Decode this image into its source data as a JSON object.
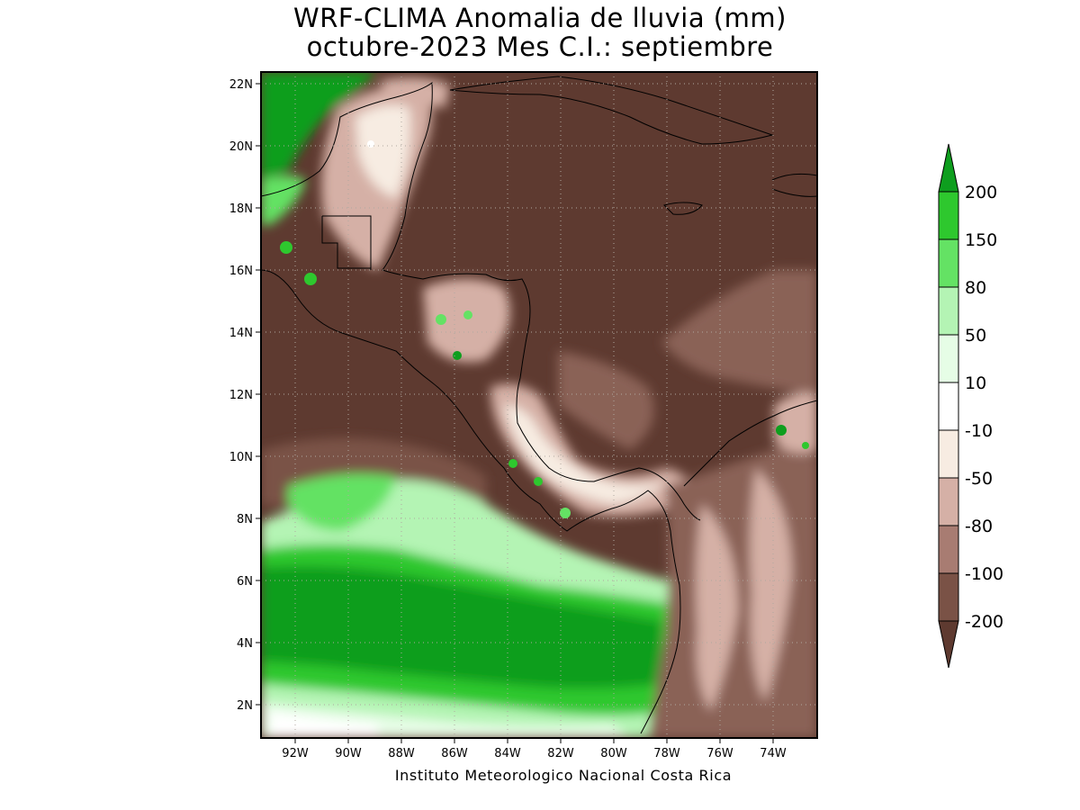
{
  "title_line1": "WRF-CLIMA Anomalia de lluvia (mm)",
  "title_line2": "octubre-2023 Mes C.I.: septiembre",
  "credit": "Instituto Meteorologico Nacional Costa Rica",
  "map": {
    "lon_range": [
      -93.4,
      -72.4
    ],
    "lat_range": [
      1.0,
      22.4
    ],
    "lat_ticks": [
      "2N",
      "4N",
      "6N",
      "8N",
      "10N",
      "12N",
      "14N",
      "16N",
      "18N",
      "20N",
      "22N"
    ],
    "lon_ticks": [
      "92W",
      "90W",
      "88W",
      "86W",
      "84W",
      "82W",
      "80W",
      "78W",
      "76W",
      "74W"
    ],
    "grid": true
  },
  "colorbar": {
    "levels": [
      "-200",
      "-100",
      "-80",
      "-50",
      "-10",
      "10",
      "50",
      "80",
      "150",
      "200"
    ],
    "colors": [
      "#5e3a30",
      "#7a5246",
      "#a87c72",
      "#d5b0a6",
      "#f7ece2",
      "#ffffff",
      "#e6fde6",
      "#b4f4b4",
      "#64e264",
      "#2ec82e",
      "#0e9e1e"
    ],
    "extend": "both"
  }
}
